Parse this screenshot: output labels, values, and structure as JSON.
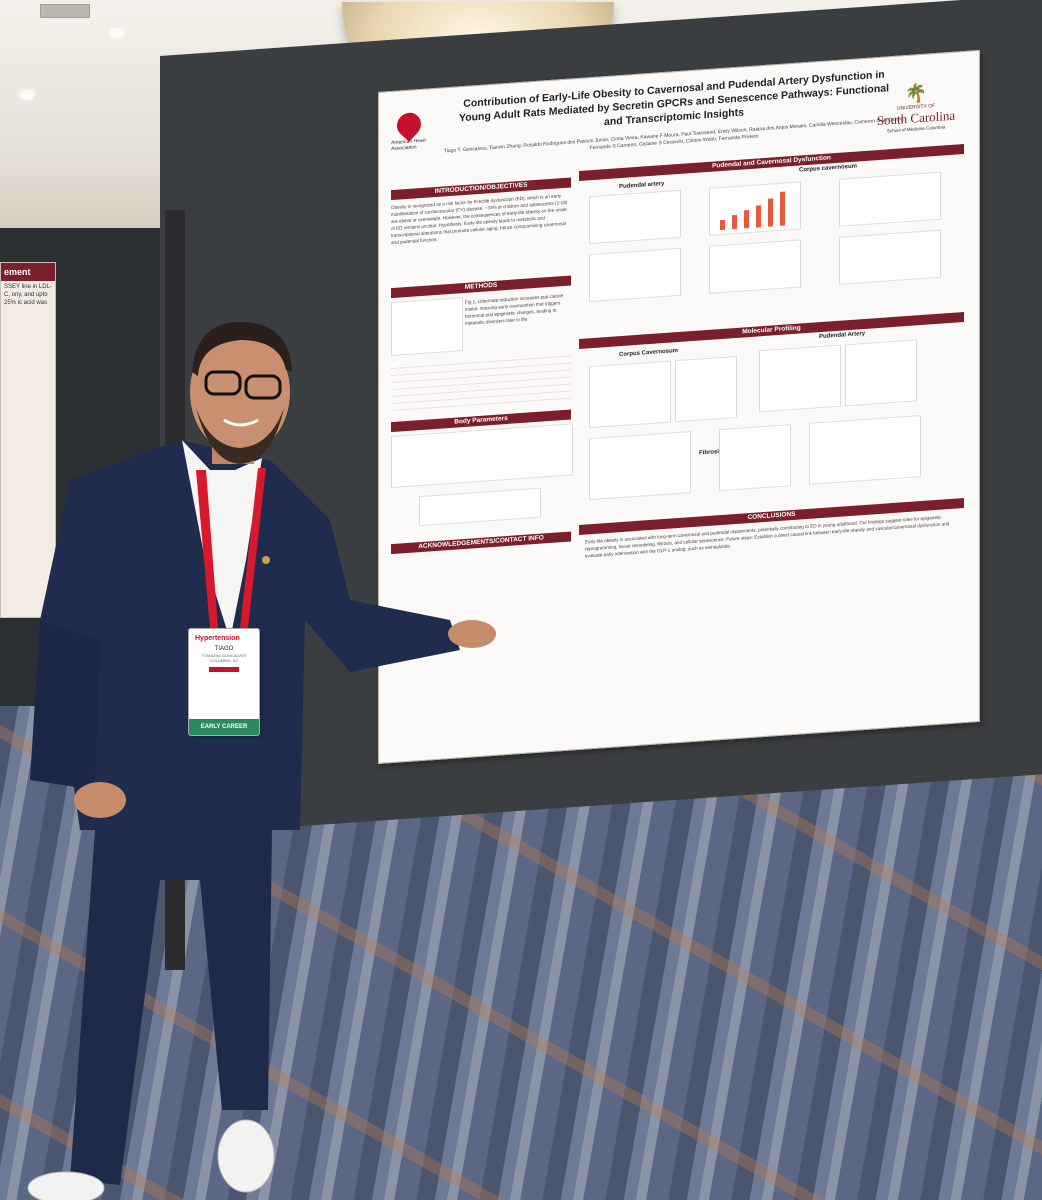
{
  "poster": {
    "title": "Contribution of Early-Life Obesity to Cavernosal and Pudendal Artery Dysfunction in Young Adult Rats Mediated by Secretin GPCRs and Senescence Pathways: Functional and Transcriptomic Insights",
    "authors": "Tiago T. Goncalves, Tianxin Zhang, Rosaldo Rodrigues dos Passos Junior, Cintia Vieira, Kawane F Moura, Paul Townsend, Emily Wilson, Raiana dos Anjos Moraes, Camilla Wenceslau, Cameron G McCarthy, Fernando S Carneiro, Gislaine S Ceravolo, Clinton Webb, Fernanda Priviero",
    "logo_left": "American Heart Association",
    "logo_right": {
      "university": "UNIVERSITY OF",
      "name": "South Carolina",
      "school": "School of Medicine Columbia"
    },
    "sections": {
      "intro": "INTRODUCTION/OBJECTIVES",
      "methods": "METHODS",
      "body_parameters": "Body Parameters",
      "acknowledgements": "ACKNOWLEDGEMENTS/CONTACT INFO",
      "pudendal_cavernosal": "Pudendal and Cavernosal Dysfunction",
      "molecular": "Molecular Profiling",
      "conclusions": "CONCLUSIONS"
    },
    "figure_labels": {
      "pudendal_artery": "Pudendal artery",
      "corpus_cavernosum": "Corpus cavernosum",
      "corpus_cavernosum_mol": "Corpus Cavernosum",
      "pudendal_artery_mol": "Pudendal Artery",
      "fibrosis": "Fibrosis"
    },
    "intro_text": "Obesity is recognized as a risk factor for Erectile dysfunction (ED), which is an early manifestation of cardiovascular (CV) disease. ~33% of children and adolescents (2-19) are obese or overweight. However, the consequences of early-life obesity on the onset of ED remains unclear. Hypothesis: Early-life obesity leads to metabolic and transcriptional alterations that promote cellular aging, hence compromising cavernosal and pudendal function.",
    "methods_text": "Fig 1. Littermate reduction increases pup calorie intake, inducing early overnutrition that triggers hormonal and epigenetic changes, leading to metabolic disorders later in life.",
    "conclusions_text": "Early-life obesity is associated with long-term cavernosal and pudendal impairments, potentially contributing to ED in young adulthood. Our findings suggest roles for epigenetic reprogramming, tissue remodeling, fibrosis, and cellular senescence. Future steps: Establish a direct causal link between early-life obesity and vascular/cavernosal dysfunction and evaluate early intervention with the GLP-1 analog, such as semaglutide."
  },
  "badge": {
    "event": "Hypertension",
    "first_name": "TIAGO",
    "last_name": "TOMAZINI GONCALVES",
    "location": "COLUMBIA, SC",
    "ribbon": "EARLY CAREER"
  },
  "side_poster": {
    "header": "ement",
    "text": "SSEY line in LDL-C, ony, and upto 25% ic acid was"
  },
  "colors": {
    "aha_red": "#c8102e",
    "usc_garnet": "#7a1f2b",
    "badge_green": "#2a8a5e",
    "suit_navy": "#1d2a4a"
  }
}
